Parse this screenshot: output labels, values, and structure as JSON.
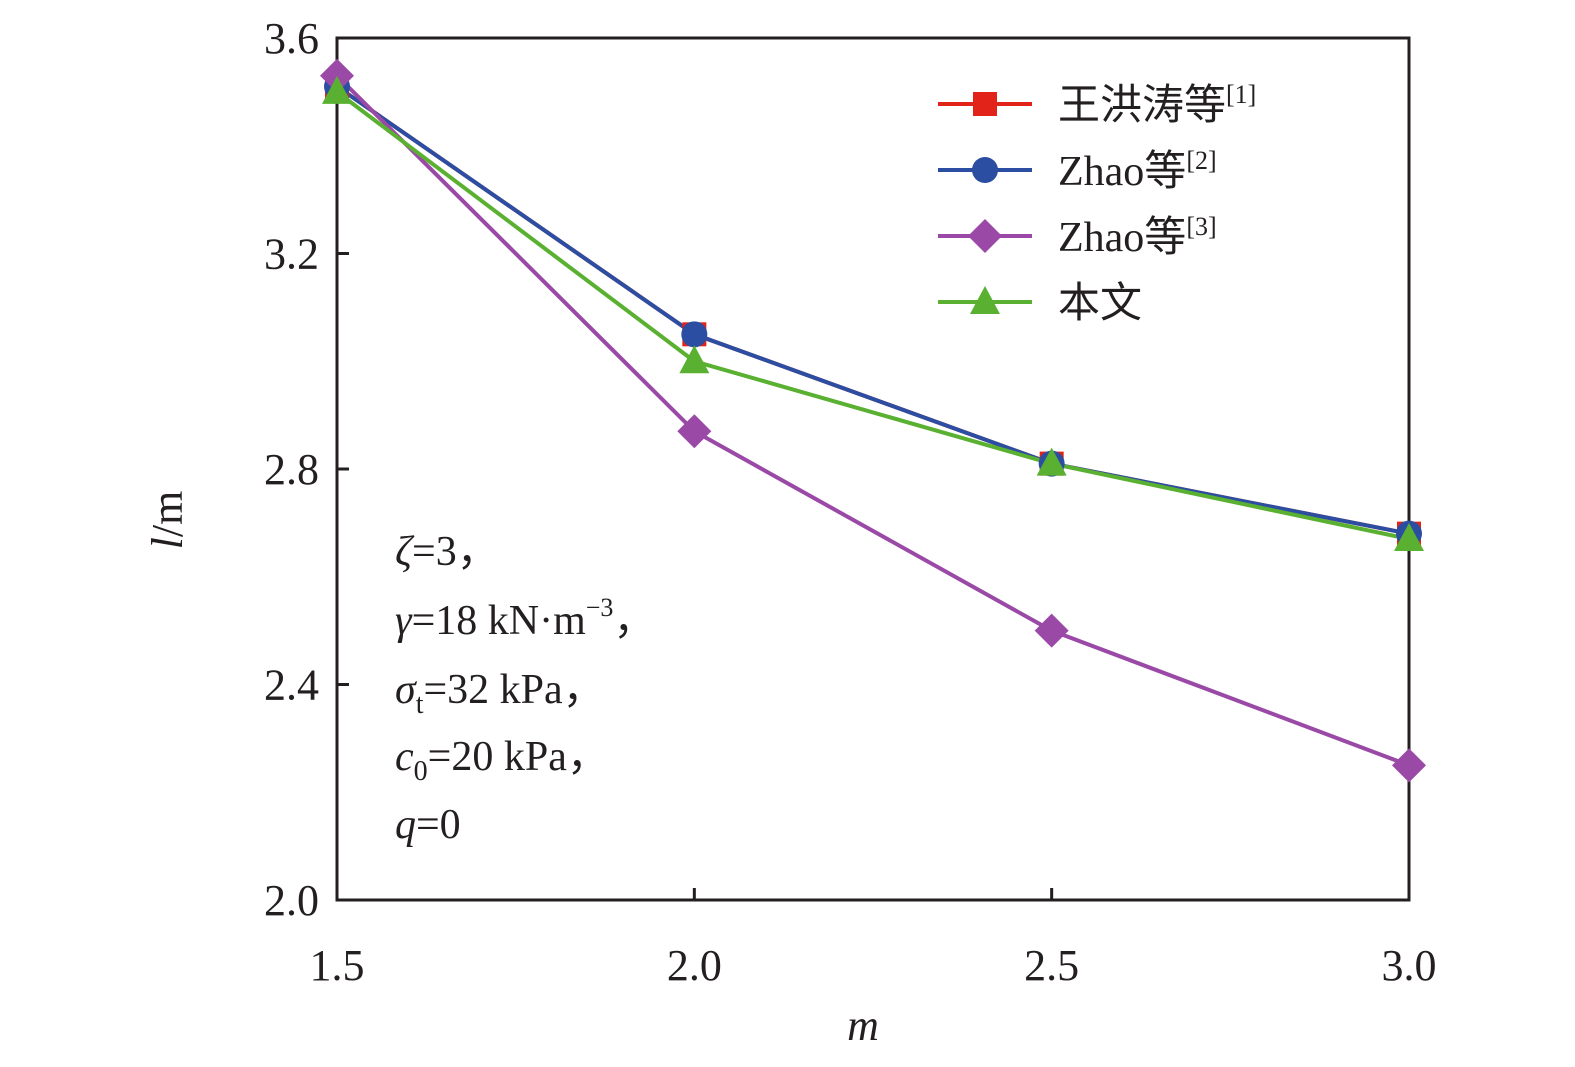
{
  "chart_data": {
    "type": "line",
    "title": "",
    "xlabel": "m",
    "ylabel": "l/m",
    "ylabel_var": "l",
    "ylabel_unit": "/m",
    "x": [
      1.5,
      2.0,
      2.5,
      3.0
    ],
    "x_ticks": [
      "1.5",
      "2.0",
      "2.5",
      "3.0"
    ],
    "y_ticks": [
      "2.0",
      "2.4",
      "2.8",
      "3.2",
      "3.6"
    ],
    "xlim": [
      1.5,
      3.0
    ],
    "ylim": [
      2.0,
      3.6
    ],
    "legend_position": "top-right",
    "series": [
      {
        "name": "王洪涛等",
        "ref": "[1]",
        "marker": "square",
        "color": "#e2231a",
        "values": [
          3.51,
          3.05,
          2.81,
          2.68
        ]
      },
      {
        "name": "Zhao等",
        "ref": "[2]",
        "marker": "circle",
        "color": "#2b4ea2",
        "values": [
          3.51,
          3.05,
          2.81,
          2.68
        ]
      },
      {
        "name": "Zhao等",
        "ref": "[3]",
        "marker": "diamond",
        "color": "#9a4aa6",
        "values": [
          3.53,
          2.87,
          2.5,
          2.25
        ]
      },
      {
        "name": "本文",
        "ref": "",
        "marker": "triangle",
        "color": "#59b031",
        "values": [
          3.5,
          3.0,
          2.81,
          2.67
        ]
      }
    ],
    "annotations": {
      "zeta": {
        "var": "ζ",
        "text": "=3，"
      },
      "gamma": {
        "var": "γ",
        "text": "=18 kN·m",
        "exp": "−3",
        "tail": "，"
      },
      "sigma": {
        "var": "σ",
        "sub": "t",
        "text": "=32 kPa，"
      },
      "c0": {
        "var": "c",
        "sub": "0",
        "text": "=20 kPa，"
      },
      "q": {
        "var": "q",
        "text": "=0"
      }
    }
  }
}
